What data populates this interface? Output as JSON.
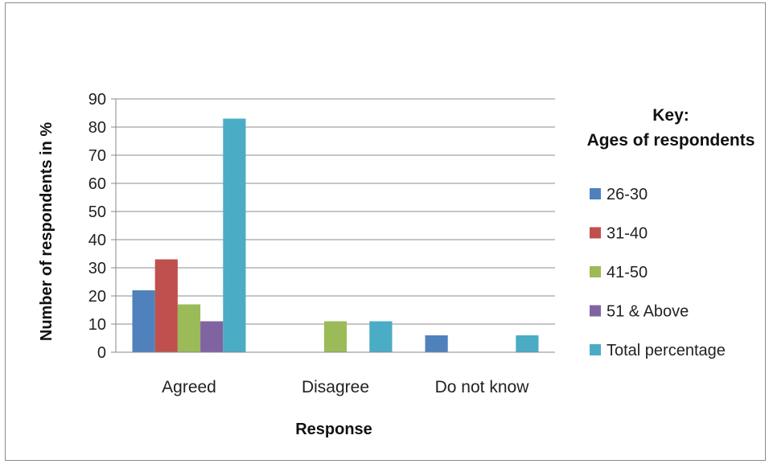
{
  "chart_data": {
    "type": "bar",
    "xlabel": "Response",
    "ylabel": "Number of respondents in %",
    "ylim": [
      0,
      90
    ],
    "yticks": [
      0,
      10,
      20,
      30,
      40,
      50,
      60,
      70,
      80,
      90
    ],
    "grid": true,
    "categories": [
      "Agreed",
      "Disagree",
      "Do not know"
    ],
    "legend": {
      "title_line1": "Key:",
      "title_line2": "Ages of respondents",
      "placement": "right"
    },
    "series": [
      {
        "name": "26-30",
        "color": "#4f81bd",
        "values": [
          22,
          0,
          6
        ]
      },
      {
        "name": "31-40",
        "color": "#c0504d",
        "values": [
          33,
          0,
          0
        ]
      },
      {
        "name": "41-50",
        "color": "#9bbb59",
        "values": [
          17,
          11,
          0
        ]
      },
      {
        "name": "51 & Above",
        "color": "#8064a2",
        "values": [
          11,
          0,
          0
        ]
      },
      {
        "name": "Total percentage",
        "color": "#4bacc6",
        "values": [
          83,
          11,
          6
        ]
      }
    ]
  }
}
